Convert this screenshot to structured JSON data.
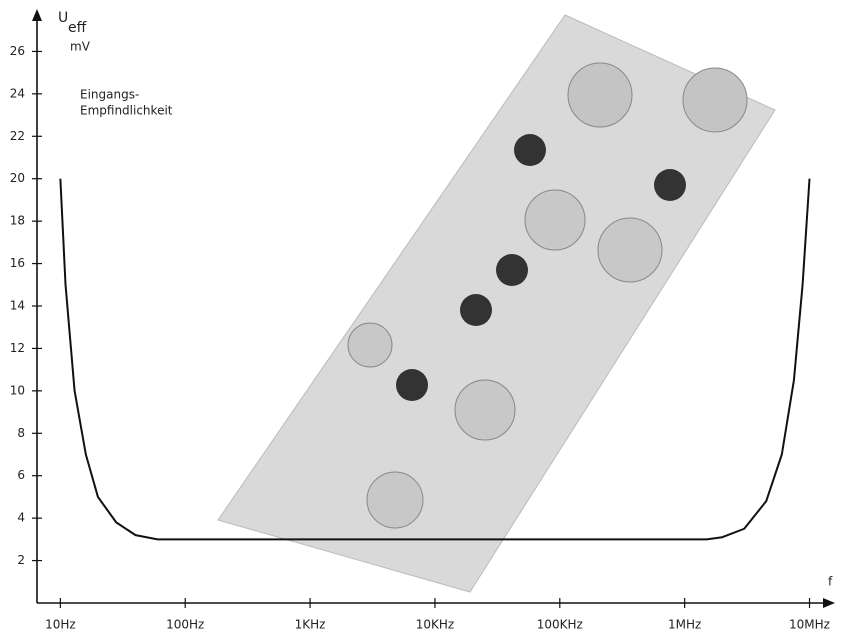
{
  "chart_data": {
    "type": "line",
    "y_label": "U",
    "y_label_sub": "eff",
    "y_unit": "mV",
    "annotation": [
      "Eingangs-",
      "Empfindlichkeit"
    ],
    "x_label": "f",
    "xscale": "log",
    "xlim": [
      6.5,
      16000000
    ],
    "ylim": [
      0,
      28
    ],
    "xticks": [
      {
        "value": 10,
        "label": "10Hz"
      },
      {
        "value": 100,
        "label": "100Hz"
      },
      {
        "value": 1000,
        "label": "1KHz"
      },
      {
        "value": 10000,
        "label": "10KHz"
      },
      {
        "value": 100000,
        "label": "100KHz"
      },
      {
        "value": 1000000,
        "label": "1MHz"
      },
      {
        "value": 10000000,
        "label": "10MHz"
      }
    ],
    "yticks": [
      2,
      4,
      6,
      8,
      10,
      12,
      14,
      16,
      18,
      20,
      22,
      24,
      26
    ],
    "series": [
      {
        "color": "#111111",
        "x": [
          10,
          11,
          13,
          16,
          20,
          28,
          40,
          60,
          1500000,
          2000000,
          3000000,
          4500000,
          6000000,
          7500000,
          8800000,
          10000000
        ],
        "values": [
          20,
          15,
          10,
          7,
          5,
          3.8,
          3.2,
          3.0,
          3.0,
          3.1,
          3.5,
          4.8,
          7,
          10.5,
          15,
          20
        ]
      }
    ]
  }
}
